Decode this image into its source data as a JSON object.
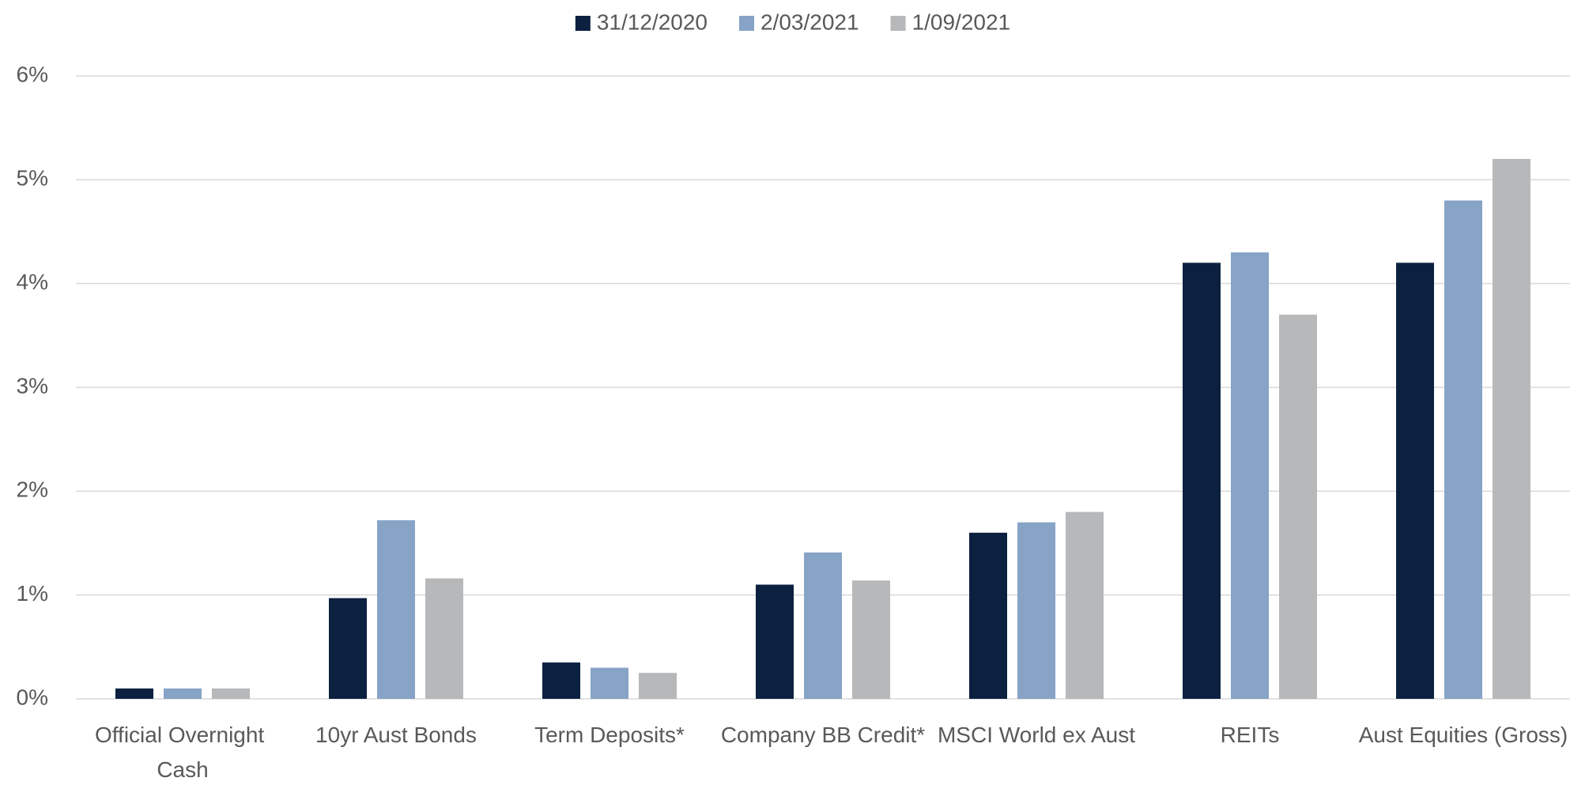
{
  "chart_data": {
    "type": "bar",
    "categories": [
      "Official Overnight Cash",
      "10yr Aust Bonds",
      "Term Deposits*",
      "Company BB Credit*",
      "MSCI World ex Aust",
      "REITs",
      "Aust Equities (Gross)"
    ],
    "series": [
      {
        "name": "31/12/2020",
        "color": "#0c2140",
        "values": [
          0.1,
          0.97,
          0.35,
          1.1,
          1.6,
          4.2,
          4.2
        ]
      },
      {
        "name": "2/03/2021",
        "color": "#87a3c6",
        "values": [
          0.1,
          1.72,
          0.3,
          1.41,
          1.7,
          4.3,
          4.8
        ]
      },
      {
        "name": "1/09/2021",
        "color": "#b7b8ba",
        "values": [
          0.1,
          1.16,
          0.25,
          1.14,
          1.8,
          3.7,
          5.2
        ]
      }
    ],
    "ylim": [
      0,
      6
    ],
    "yticks": [
      {
        "value": 0,
        "label": "0%"
      },
      {
        "value": 1,
        "label": "1%"
      },
      {
        "value": 2,
        "label": "2%"
      },
      {
        "value": 3,
        "label": "3%"
      },
      {
        "value": 4,
        "label": "4%"
      },
      {
        "value": 5,
        "label": "5%"
      },
      {
        "value": 6,
        "label": "6%"
      }
    ],
    "grid": true,
    "legend": "top"
  }
}
